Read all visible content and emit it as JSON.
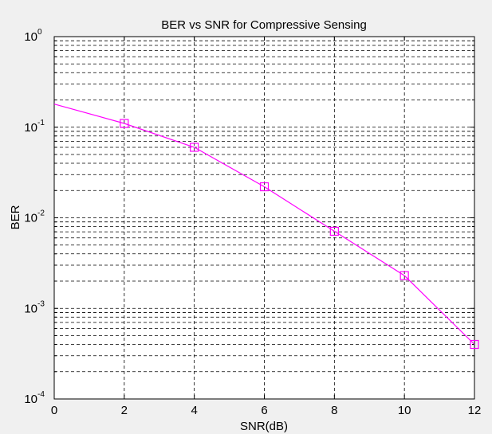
{
  "colors": {
    "figure_background": "#f0f0f0",
    "axes_background": "#ffffff",
    "series": "#ff00ff",
    "grid": "#000000"
  },
  "chart_data": {
    "type": "line",
    "title": "BER vs SNR for Compressive Sensing",
    "xlabel": "SNR(dB)",
    "ylabel": "BER",
    "xlim": [
      0,
      12
    ],
    "ylim": [
      0.0001,
      1
    ],
    "yscale": "log",
    "grid": true,
    "grid_style": "dashed",
    "x_ticks": [
      0,
      2,
      4,
      6,
      8,
      10,
      12
    ],
    "y_ticks": [
      {
        "base": "10",
        "exp": "0",
        "value": 1
      },
      {
        "base": "10",
        "exp": "-1",
        "value": 0.1
      },
      {
        "base": "10",
        "exp": "-2",
        "value": 0.01
      },
      {
        "base": "10",
        "exp": "-3",
        "value": 0.001
      },
      {
        "base": "10",
        "exp": "-4",
        "value": 0.0001
      }
    ],
    "series": [
      {
        "marker": "square",
        "color": "#ff00ff",
        "x": [
          0,
          2,
          4,
          6,
          8,
          10,
          12
        ],
        "y": [
          0.18,
          0.11,
          0.06,
          0.022,
          0.0071,
          0.0023,
          0.0004
        ],
        "marker_x": [
          2,
          4,
          6,
          8,
          10,
          12
        ]
      }
    ]
  }
}
